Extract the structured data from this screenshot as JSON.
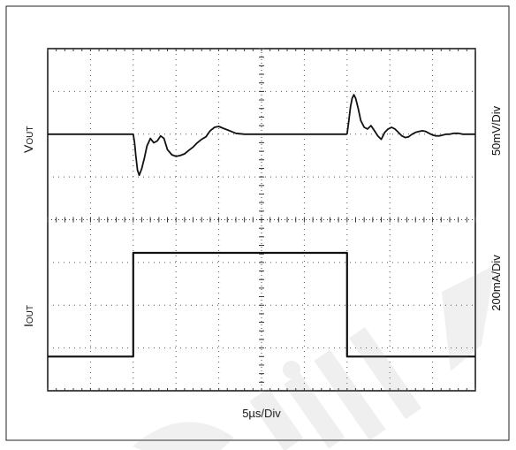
{
  "chart_data": {
    "type": "line",
    "title": "",
    "xlabel": "5µs/Div",
    "x_unit": "µs",
    "x_range": [
      0,
      50
    ],
    "panels": [
      {
        "name": "vout",
        "ylabel_main": "V",
        "ylabel_sub": "OUT",
        "scale_label": "50mV/Div",
        "y_unit": "mV",
        "y_range": [
          -100,
          100
        ],
        "series": [
          {
            "x": [
              0,
              10,
              10.15,
              10.3,
              10.5,
              10.7,
              11.0,
              11.3,
              11.6,
              12.0,
              12.4,
              12.8,
              13.2,
              13.6,
              14.0,
              14.5,
              15.0,
              15.5,
              16.0,
              16.5,
              17.0,
              17.5,
              18.0,
              18.5,
              19.0,
              19.5,
              20.0,
              20.5,
              21.0,
              21.5,
              22.0,
              23.0,
              24.0,
              26.0,
              28.0,
              30.0,
              32.0,
              35.0
            ],
            "y": [
              0,
              0,
              -10,
              -25,
              -42,
              -48,
              -40,
              -28,
              -14,
              -5,
              -10,
              -8,
              -2,
              -5,
              -18,
              -24,
              -26,
              -25,
              -23,
              -19,
              -15,
              -10,
              -6,
              -3,
              4,
              8,
              9,
              7,
              5,
              3,
              1,
              0,
              0,
              0,
              0,
              0,
              0,
              0
            ]
          },
          {
            "x": [
              35,
              35.2,
              35.4,
              35.6,
              35.8,
              36.0,
              36.3,
              36.6,
              37.0,
              37.4,
              37.8,
              38.2,
              38.6,
              39.0,
              39.4,
              39.8,
              40.2,
              40.6,
              41.0,
              41.4,
              41.8,
              42.2,
              42.6,
              43.0,
              43.4,
              43.8,
              44.2,
              44.6,
              45.0,
              45.4,
              45.8,
              46.2,
              46.6,
              47.0,
              47.5,
              48.0,
              48.5,
              49.0,
              49.5,
              50.0
            ],
            "y": [
              0,
              15,
              32,
              42,
              46,
              42,
              30,
              16,
              8,
              6,
              10,
              4,
              -2,
              -6,
              2,
              6,
              8,
              6,
              2,
              -2,
              -4,
              -3,
              0,
              2,
              3,
              4,
              3,
              1,
              -1,
              -2,
              -2,
              -1,
              0,
              0,
              1,
              1,
              0,
              0,
              0,
              0
            ]
          }
        ]
      },
      {
        "name": "iout",
        "ylabel_main": "I",
        "ylabel_sub": "OUT",
        "scale_label": "200mA/Div",
        "y_unit": "mA",
        "y_range": [
          -400,
          400
        ],
        "series": [
          {
            "x": [
              0,
              10,
              10,
              35,
              35,
              50
            ],
            "y": [
              -240,
              -240,
              245,
              245,
              -240,
              -240
            ]
          }
        ]
      }
    ],
    "grid": true,
    "divisions": {
      "x": 10,
      "y": 8
    }
  }
}
